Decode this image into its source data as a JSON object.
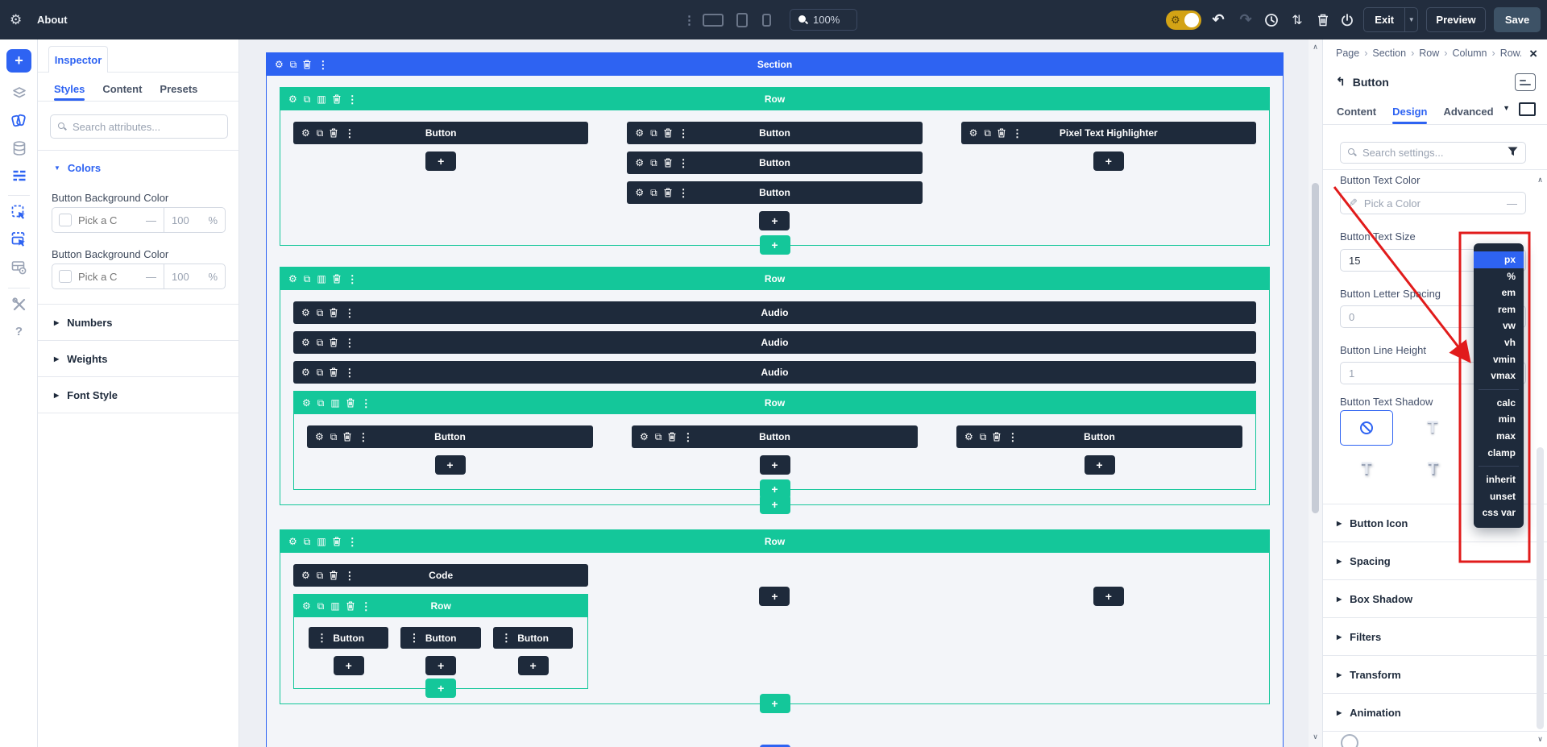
{
  "topbar": {
    "title": "About",
    "zoom": "100%",
    "exit": "Exit",
    "preview": "Preview",
    "save": "Save"
  },
  "left_rail": {
    "items": [
      "add-module",
      "layers",
      "design-presets",
      "database",
      "layout-settings",
      "select-module",
      "select-multiple",
      "table-visibility",
      "tools",
      "help"
    ]
  },
  "inspector": {
    "tab_title": "Inspector",
    "tabs": [
      "Styles",
      "Content",
      "Presets"
    ],
    "active_tab": "Styles",
    "search_placeholder": "Search attributes...",
    "colors": {
      "title": "Colors",
      "fields": [
        {
          "label": "Button Background Color",
          "placeholder": "Pick a C",
          "dash": "—",
          "opacity": "100",
          "unit": "%"
        },
        {
          "label": "Button Background Color",
          "placeholder": "Pick a C",
          "dash": "—",
          "opacity": "100",
          "unit": "%"
        }
      ]
    },
    "collapsed_sections": [
      "Numbers",
      "Weights",
      "Font Style"
    ]
  },
  "canvas": {
    "labels": {
      "section": "Section",
      "row": "Row",
      "button": "Button",
      "audio": "Audio",
      "code": "Code",
      "pixel": "Pixel Text Highlighter",
      "add": "+"
    },
    "tree": {
      "type": "section",
      "bottom_add": "blue",
      "children": [
        {
          "type": "row",
          "bottom_add": "teal",
          "cols": [
            {
              "items": [
                {
                  "m": "button"
                },
                {
                  "add": "dark"
                }
              ]
            },
            {
              "items": [
                {
                  "m": "button"
                },
                {
                  "m": "button"
                },
                {
                  "m": "button"
                },
                {
                  "add": "dark"
                }
              ]
            },
            {
              "items": [
                {
                  "m": "pixel"
                },
                {
                  "add": "dark"
                }
              ]
            }
          ]
        },
        {
          "type": "row",
          "mt": "lg",
          "bottom_add": "teal",
          "cols": [
            {
              "items": [
                {
                  "m": "audio"
                },
                {
                  "m": "audio"
                },
                {
                  "m": "audio"
                },
                {
                  "type": "row",
                  "bottom_add": "teal",
                  "cols": [
                    {
                      "items": [
                        {
                          "m": "button"
                        },
                        {
                          "add": "dark"
                        }
                      ]
                    },
                    {
                      "items": [
                        {
                          "m": "button"
                        },
                        {
                          "add": "dark"
                        }
                      ]
                    },
                    {
                      "items": [
                        {
                          "m": "button"
                        },
                        {
                          "add": "dark"
                        }
                      ]
                    }
                  ]
                }
              ]
            }
          ]
        },
        {
          "type": "row",
          "mt": "xl",
          "bottom_add": "teal",
          "cols": [
            {
              "items": [
                {
                  "m": "code"
                },
                {
                  "type": "row",
                  "small": true,
                  "bottom_add": "teal",
                  "cols": [
                    {
                      "items": [
                        {
                          "m": "button",
                          "small": true
                        },
                        {
                          "add": "dark"
                        }
                      ]
                    },
                    {
                      "items": [
                        {
                          "m": "button",
                          "small": true
                        },
                        {
                          "add": "dark"
                        }
                      ]
                    },
                    {
                      "items": [
                        {
                          "m": "button",
                          "small": true
                        },
                        {
                          "add": "dark"
                        }
                      ]
                    }
                  ]
                }
              ]
            },
            {
              "items": [
                {
                  "add": "dark"
                }
              ]
            },
            {
              "items": [
                {
                  "add": "dark"
                }
              ]
            }
          ]
        }
      ]
    }
  },
  "settings": {
    "breadcrumb": [
      "Page",
      "Section",
      "Row",
      "Column",
      "Row..."
    ],
    "breadcrumb_separator": "›",
    "module_title": "Button",
    "tabs": [
      "Content",
      "Design",
      "Advanced"
    ],
    "active_tab": "Design",
    "search_placeholder": "Search settings...",
    "fields": {
      "text_color": {
        "label": "Button Text Color",
        "placeholder": "Pick a Color",
        "dash": "—"
      },
      "text_size": {
        "label": "Button Text Size",
        "value": "15"
      },
      "letter_spacing": {
        "label": "Button Letter Spacing",
        "value": "0"
      },
      "line_height": {
        "label": "Button Line Height",
        "value": "1"
      },
      "text_shadow": {
        "label": "Button Text Shadow"
      }
    },
    "collapsed_sections": [
      "Button Icon",
      "Spacing",
      "Box Shadow",
      "Filters",
      "Transform",
      "Animation"
    ]
  },
  "unit_dropdown": {
    "selected": "px",
    "groups": [
      [
        "px",
        "%",
        "em",
        "rem",
        "vw",
        "vh",
        "vmin",
        "vmax"
      ],
      [
        "calc",
        "min",
        "max",
        "clamp"
      ],
      [
        "inherit",
        "unset",
        "css var"
      ]
    ]
  },
  "annotation": {
    "color": "#e11b1b"
  },
  "theme": {
    "accent_blue": "#2e63f2",
    "teal": "#14c79a",
    "module_dark": "#1e2a3b",
    "topbar": "#222d3e",
    "save_button": "#3d5266",
    "toggle_gold": "#d3a315"
  }
}
